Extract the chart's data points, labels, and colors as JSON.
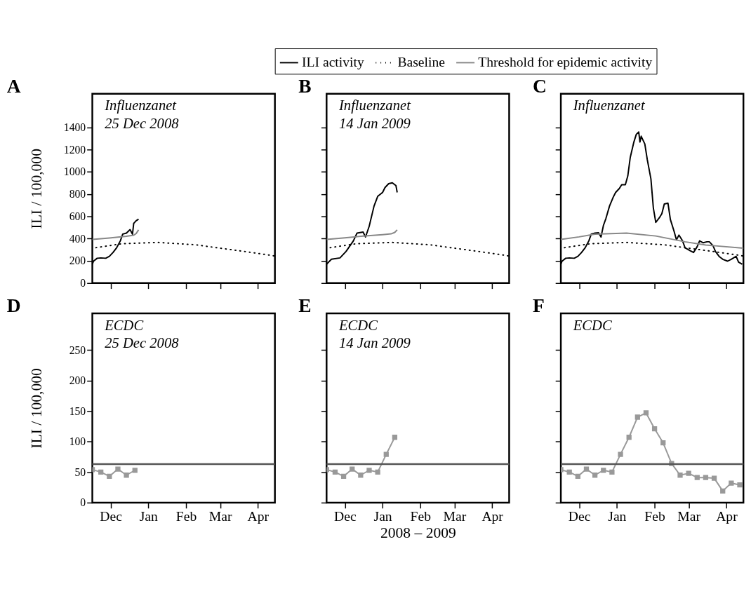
{
  "chart_data": [
    {
      "type": "line",
      "title": "A",
      "annotations": [
        "Influenzanet",
        "25 Dec 2008"
      ],
      "ylabel": "ILI / 100,000",
      "xlim": [
        "2008-11-16",
        "2009-04-15"
      ],
      "xticks": [
        {
          "value": "2008-12-01",
          "label": "Dec"
        },
        {
          "value": "2009-01-01",
          "label": "Jan"
        },
        {
          "value": "2009-02-01",
          "label": "Feb"
        },
        {
          "value": "2009-03-01",
          "label": "Mar"
        },
        {
          "value": "2009-04-01",
          "label": "Apr"
        }
      ],
      "ylim": [
        0,
        1700
      ],
      "yticks": [
        0,
        200,
        400,
        600,
        800,
        1000,
        1200,
        1400
      ],
      "tick_labels": "y",
      "legend": "top right",
      "grid": false,
      "series": [
        {
          "name": "ILI activity",
          "color": "#000000",
          "line_style": "solid",
          "x": [
            "2008-11-16",
            "2008-11-17",
            "2008-11-20",
            "2008-11-23",
            "2008-11-27",
            "2008-11-30",
            "2008-12-03",
            "2008-12-06",
            "2008-12-09",
            "2008-12-11",
            "2008-12-14",
            "2008-12-17",
            "2008-12-19",
            "2008-12-20",
            "2008-12-22",
            "2008-12-24"
          ],
          "values": [
            170,
            197,
            223,
            226,
            223,
            240,
            275,
            318,
            379,
            440,
            449,
            480,
            440,
            536,
            560,
            574
          ]
        },
        {
          "name": "Baseline",
          "color": "#000000",
          "line_style": "dotted",
          "x": [
            "2008-11-19",
            "2008-12-10",
            "2009-01-09",
            "2009-02-09",
            "2009-02-26",
            "2009-03-21",
            "2009-04-12",
            "2009-04-15"
          ],
          "values": [
            318,
            353,
            365,
            344,
            318,
            284,
            249,
            242
          ]
        },
        {
          "name": "Threshold for epidemic activity",
          "color": "#888888",
          "line_style": "solid",
          "x": [
            "2008-11-16",
            "2008-11-30",
            "2008-12-14",
            "2008-12-20",
            "2008-12-22",
            "2008-12-24"
          ],
          "values": [
            392,
            405,
            420,
            430,
            445,
            478
          ]
        }
      ]
    },
    {
      "type": "line",
      "title": "B",
      "annotations": [
        "Influenzanet",
        "14 Jan 2009"
      ],
      "xlim": [
        "2008-11-16",
        "2009-04-15"
      ],
      "xticks": [
        {
          "value": "2008-12-01",
          "label": "Dec"
        },
        {
          "value": "2009-01-01",
          "label": "Jan"
        },
        {
          "value": "2009-02-01",
          "label": "Feb"
        },
        {
          "value": "2009-03-01",
          "label": "Mar"
        },
        {
          "value": "2009-04-01",
          "label": "Apr"
        }
      ],
      "ylim": [
        0,
        1700
      ],
      "yticks": [
        0,
        200,
        400,
        600,
        800,
        1000,
        1200,
        1400
      ],
      "tick_labels": false,
      "legend": "top right",
      "grid": false,
      "series": [
        {
          "name": "ILI activity",
          "color": "#000000",
          "line_style": "solid",
          "x": [
            "2008-11-16",
            "2008-11-20",
            "2008-11-27",
            "2008-12-02",
            "2008-12-08",
            "2008-12-11",
            "2008-12-16",
            "2008-12-18",
            "2008-12-21",
            "2008-12-25",
            "2008-12-28",
            "2009-01-01",
            "2009-01-03",
            "2009-01-06",
            "2009-01-09",
            "2009-01-12",
            "2009-01-13"
          ],
          "values": [
            170,
            214,
            226,
            284,
            379,
            449,
            458,
            414,
            510,
            692,
            779,
            814,
            858,
            893,
            901,
            875,
            814
          ]
        },
        {
          "name": "Baseline",
          "color": "#000000",
          "line_style": "dotted",
          "x": [
            "2008-11-19",
            "2008-12-10",
            "2009-01-09",
            "2009-02-09",
            "2009-02-26",
            "2009-03-21",
            "2009-04-12",
            "2009-04-15"
          ],
          "values": [
            318,
            353,
            365,
            344,
            318,
            284,
            249,
            242
          ]
        },
        {
          "name": "Threshold for epidemic activity",
          "color": "#888888",
          "line_style": "solid",
          "x": [
            "2008-11-16",
            "2008-12-01",
            "2008-12-16",
            "2009-01-01",
            "2009-01-08",
            "2009-01-11",
            "2009-01-13"
          ],
          "values": [
            392,
            407,
            422,
            435,
            442,
            455,
            478
          ]
        }
      ]
    },
    {
      "type": "line",
      "title": "C",
      "annotations": [
        "Influenzanet"
      ],
      "xlim": [
        "2008-11-16",
        "2009-04-15"
      ],
      "xticks": [
        {
          "value": "2008-12-01",
          "label": "Dec"
        },
        {
          "value": "2009-01-01",
          "label": "Jan"
        },
        {
          "value": "2009-02-01",
          "label": "Feb"
        },
        {
          "value": "2009-03-01",
          "label": "Mar"
        },
        {
          "value": "2009-04-01",
          "label": "Apr"
        }
      ],
      "ylim": [
        0,
        1700
      ],
      "yticks": [
        0,
        200,
        400,
        600,
        800,
        1000,
        1200,
        1400
      ],
      "tick_labels": false,
      "legend": "top right",
      "grid": false,
      "series": [
        {
          "name": "ILI activity",
          "color": "#000000",
          "line_style": "solid",
          "x": [
            "2008-11-16",
            "2008-11-17",
            "2008-11-20",
            "2008-11-23",
            "2008-11-27",
            "2008-11-30",
            "2008-12-03",
            "2008-12-06",
            "2008-12-09",
            "2008-12-11",
            "2008-12-14",
            "2008-12-17",
            "2008-12-19",
            "2008-12-21",
            "2008-12-23",
            "2008-12-26",
            "2008-12-29",
            "2008-12-31",
            "2009-01-03",
            "2009-01-05",
            "2009-01-08",
            "2009-01-10",
            "2009-01-12",
            "2009-01-15",
            "2009-01-17",
            "2009-01-19",
            "2009-01-20",
            "2009-01-21",
            "2009-01-24",
            "2009-01-26",
            "2009-01-29",
            "2009-01-31",
            "2009-02-02",
            "2009-02-05",
            "2009-02-07",
            "2009-02-09",
            "2009-02-12",
            "2009-02-14",
            "2009-02-17",
            "2009-02-19",
            "2009-02-21",
            "2009-02-24",
            "2009-02-26",
            "2009-03-02",
            "2009-03-05",
            "2009-03-08",
            "2009-03-10",
            "2009-03-13",
            "2009-03-16",
            "2009-03-18",
            "2009-03-21",
            "2009-03-23",
            "2009-03-26",
            "2009-03-29",
            "2009-04-02",
            "2009-04-05",
            "2009-04-09",
            "2009-04-11",
            "2009-04-14"
          ],
          "values": [
            170,
            197,
            223,
            226,
            223,
            240,
            275,
            318,
            379,
            440,
            449,
            452,
            414,
            518,
            579,
            692,
            771,
            814,
            849,
            884,
            884,
            962,
            1127,
            1267,
            1336,
            1357,
            1267,
            1319,
            1249,
            1110,
            936,
            675,
            545,
            588,
            623,
            710,
            718,
            571,
            466,
            388,
            431,
            379,
            318,
            292,
            275,
            327,
            379,
            362,
            371,
            371,
            336,
            284,
            240,
            214,
            197,
            214,
            240,
            188,
            170
          ]
        },
        {
          "name": "Baseline",
          "color": "#000000",
          "line_style": "dotted",
          "x": [
            "2008-11-19",
            "2008-12-10",
            "2009-01-09",
            "2009-02-09",
            "2009-02-26",
            "2009-03-21",
            "2009-04-12",
            "2009-04-15"
          ],
          "values": [
            318,
            353,
            365,
            344,
            318,
            284,
            249,
            242
          ]
        },
        {
          "name": "Threshold for epidemic activity",
          "color": "#888888",
          "line_style": "solid",
          "x": [
            "2008-11-16",
            "2008-12-01",
            "2008-12-14",
            "2009-01-09",
            "2009-02-02",
            "2009-02-26",
            "2009-03-15",
            "2009-04-15"
          ],
          "values": [
            392,
            415,
            440,
            449,
            423,
            371,
            342,
            313
          ]
        }
      ]
    },
    {
      "type": "line",
      "title": "D",
      "annotations": [
        "ECDC",
        "25 Dec 2008"
      ],
      "ylabel": "ILI / 100,000",
      "xlim": [
        "2008-11-16",
        "2009-04-15"
      ],
      "xticks": [
        {
          "value": "2008-12-01",
          "label": "Dec"
        },
        {
          "value": "2009-01-01",
          "label": "Jan"
        },
        {
          "value": "2009-02-01",
          "label": "Feb"
        },
        {
          "value": "2009-03-01",
          "label": "Mar"
        },
        {
          "value": "2009-04-01",
          "label": "Apr"
        }
      ],
      "ylim": [
        0,
        310
      ],
      "yticks": [
        0,
        50,
        100,
        150,
        200,
        250
      ],
      "marker": "square",
      "grid": false,
      "ref_lines": [
        {
          "axis": "y",
          "value": 63,
          "color": "#555555"
        }
      ],
      "series": [
        {
          "color": "#999999",
          "line_style": "solid",
          "x": [
            "2008-11-16",
            "2008-11-23",
            "2008-11-30",
            "2008-12-07",
            "2008-12-14",
            "2008-12-21"
          ],
          "values": [
            54,
            50,
            43,
            55,
            45,
            53
          ]
        }
      ]
    },
    {
      "type": "line",
      "title": "E",
      "annotations": [
        "ECDC",
        "14 Jan 2009"
      ],
      "xlabel": "2008 – 2009",
      "xlim": [
        "2008-11-16",
        "2009-04-15"
      ],
      "xticks": [
        {
          "value": "2008-12-01",
          "label": "Dec"
        },
        {
          "value": "2009-01-01",
          "label": "Jan"
        },
        {
          "value": "2009-02-01",
          "label": "Feb"
        },
        {
          "value": "2009-03-01",
          "label": "Mar"
        },
        {
          "value": "2009-04-01",
          "label": "Apr"
        }
      ],
      "ylim": [
        0,
        310
      ],
      "yticks": [
        0,
        50,
        100,
        150,
        200,
        250
      ],
      "tick_labels": "x",
      "marker": "square",
      "grid": false,
      "ref_lines": [
        {
          "axis": "y",
          "value": 63,
          "color": "#555555"
        }
      ],
      "series": [
        {
          "color": "#999999",
          "line_style": "solid",
          "x": [
            "2008-11-16",
            "2008-11-23",
            "2008-11-30",
            "2008-12-07",
            "2008-12-14",
            "2008-12-21",
            "2008-12-28",
            "2009-01-04",
            "2009-01-11"
          ],
          "values": [
            54,
            50,
            43,
            55,
            45,
            53,
            50,
            79,
            107
          ]
        }
      ]
    },
    {
      "type": "line",
      "title": "F",
      "annotations": [
        "ECDC"
      ],
      "xlim": [
        "2008-11-16",
        "2009-04-15"
      ],
      "xticks": [
        {
          "value": "2008-12-01",
          "label": "Dec"
        },
        {
          "value": "2009-01-01",
          "label": "Jan"
        },
        {
          "value": "2009-02-01",
          "label": "Feb"
        },
        {
          "value": "2009-03-01",
          "label": "Mar"
        },
        {
          "value": "2009-04-01",
          "label": "Apr"
        }
      ],
      "ylim": [
        0,
        310
      ],
      "yticks": [
        0,
        50,
        100,
        150,
        200,
        250
      ],
      "tick_labels": "x",
      "marker": "square",
      "grid": false,
      "ref_lines": [
        {
          "axis": "y",
          "value": 63,
          "color": "#555555"
        }
      ],
      "series": [
        {
          "color": "#999999",
          "line_style": "solid",
          "x": [
            "2008-11-16",
            "2008-11-23",
            "2008-11-30",
            "2008-12-07",
            "2008-12-14",
            "2008-12-21",
            "2008-12-28",
            "2009-01-04",
            "2009-01-11",
            "2009-01-18",
            "2009-01-25",
            "2009-02-01",
            "2009-02-08",
            "2009-02-15",
            "2009-02-22",
            "2009-03-01",
            "2009-03-08",
            "2009-03-15",
            "2009-03-22",
            "2009-03-29",
            "2009-04-05",
            "2009-04-12"
          ],
          "values": [
            54,
            50,
            43,
            55,
            45,
            53,
            50,
            79,
            107,
            140,
            147,
            121,
            98,
            64,
            45,
            48,
            41,
            41,
            40,
            19,
            32,
            29
          ]
        }
      ]
    }
  ]
}
